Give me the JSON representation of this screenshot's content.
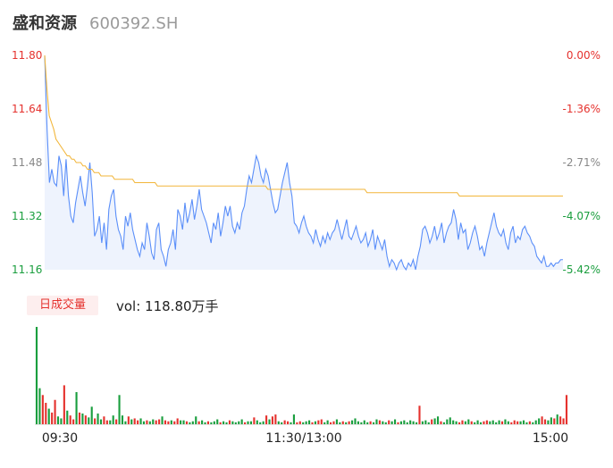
{
  "header": {
    "name": "盛和资源",
    "code": "600392.SH"
  },
  "volume_panel": {
    "tag": "日成交量",
    "vol_prefix": "vol: ",
    "vol_value": "118.80",
    "vol_unit": "万手"
  },
  "colors": {
    "up": "#e5322e",
    "down": "#1a9e3e",
    "neutral": "#888888",
    "price_line": "#5b8ff9",
    "avg_line": "#f2b63a"
  },
  "chart_data": [
    {
      "type": "line",
      "title": "",
      "y_ticks_left": [
        "11.80",
        "11.64",
        "11.48",
        "11.32",
        "11.16"
      ],
      "y_ticks_right": [
        "0.00%",
        "-1.36%",
        "-2.71%",
        "-4.07%",
        "-5.42%"
      ],
      "ylim": [
        11.16,
        11.8
      ],
      "x_ticks": [
        "09:30",
        "11:30/13:00",
        "15:00"
      ],
      "series": [
        {
          "role": "price",
          "values": [
            11.8,
            11.58,
            11.42,
            11.46,
            11.42,
            11.41,
            11.5,
            11.47,
            11.38,
            11.49,
            11.38,
            11.32,
            11.3,
            11.36,
            11.4,
            11.44,
            11.39,
            11.35,
            11.41,
            11.48,
            11.39,
            11.26,
            11.28,
            11.32,
            11.24,
            11.3,
            11.22,
            11.34,
            11.38,
            11.4,
            11.32,
            11.28,
            11.26,
            11.22,
            11.32,
            11.29,
            11.33,
            11.28,
            11.25,
            11.22,
            11.2,
            11.24,
            11.22,
            11.3,
            11.26,
            11.21,
            11.19,
            11.28,
            11.3,
            11.22,
            11.2,
            11.17,
            11.22,
            11.24,
            11.28,
            11.22,
            11.34,
            11.32,
            11.28,
            11.36,
            11.3,
            11.33,
            11.37,
            11.31,
            11.35,
            11.4,
            11.34,
            11.32,
            11.3,
            11.27,
            11.24,
            11.3,
            11.28,
            11.33,
            11.26,
            11.3,
            11.35,
            11.32,
            11.35,
            11.29,
            11.27,
            11.3,
            11.28,
            11.33,
            11.35,
            11.4,
            11.44,
            11.42,
            11.46,
            11.5,
            11.48,
            11.44,
            11.42,
            11.46,
            11.44,
            11.4,
            11.36,
            11.33,
            11.34,
            11.38,
            11.42,
            11.45,
            11.48,
            11.42,
            11.38,
            11.3,
            11.29,
            11.27,
            11.3,
            11.32,
            11.29,
            11.27,
            11.26,
            11.24,
            11.28,
            11.25,
            11.23,
            11.26,
            11.24,
            11.27,
            11.25,
            11.27,
            11.28,
            11.31,
            11.28,
            11.25,
            11.28,
            11.31,
            11.26,
            11.25,
            11.27,
            11.29,
            11.26,
            11.24,
            11.25,
            11.27,
            11.23,
            11.25,
            11.28,
            11.22,
            11.26,
            11.24,
            11.22,
            11.25,
            11.2,
            11.17,
            11.19,
            11.18,
            11.16,
            11.18,
            11.19,
            11.17,
            11.16,
            11.18,
            11.17,
            11.19,
            11.16,
            11.2,
            11.23,
            11.28,
            11.29,
            11.27,
            11.24,
            11.26,
            11.29,
            11.25,
            11.27,
            11.3,
            11.24,
            11.27,
            11.29,
            11.3,
            11.34,
            11.31,
            11.25,
            11.3,
            11.27,
            11.28,
            11.22,
            11.24,
            11.27,
            11.29,
            11.26,
            11.22,
            11.23,
            11.2,
            11.24,
            11.27,
            11.3,
            11.33,
            11.29,
            11.27,
            11.26,
            11.28,
            11.24,
            11.22,
            11.27,
            11.29,
            11.24,
            11.26,
            11.25,
            11.28,
            11.29,
            11.27,
            11.26,
            11.24,
            11.23,
            11.2,
            11.19,
            11.18,
            11.2,
            11.17,
            11.17,
            11.18,
            11.17,
            11.18,
            11.18,
            11.19,
            11.19
          ]
        },
        {
          "role": "average",
          "values": [
            11.8,
            11.7,
            11.62,
            11.6,
            11.58,
            11.55,
            11.54,
            11.53,
            11.52,
            11.51,
            11.5,
            11.5,
            11.49,
            11.49,
            11.48,
            11.48,
            11.48,
            11.47,
            11.47,
            11.46,
            11.46,
            11.46,
            11.45,
            11.45,
            11.45,
            11.44,
            11.44,
            11.44,
            11.44,
            11.44,
            11.44,
            11.43,
            11.43,
            11.43,
            11.43,
            11.43,
            11.43,
            11.43,
            11.43,
            11.43,
            11.42,
            11.42,
            11.42,
            11.42,
            11.42,
            11.42,
            11.42,
            11.42,
            11.42,
            11.42,
            11.41,
            11.41,
            11.41,
            11.41,
            11.41,
            11.41,
            11.41,
            11.41,
            11.41,
            11.41,
            11.41,
            11.41,
            11.41,
            11.41,
            11.41,
            11.41,
            11.41,
            11.41,
            11.41,
            11.41,
            11.41,
            11.41,
            11.41,
            11.41,
            11.41,
            11.41,
            11.41,
            11.41,
            11.41,
            11.41,
            11.41,
            11.41,
            11.41,
            11.41,
            11.41,
            11.41,
            11.41,
            11.41,
            11.41,
            11.41,
            11.41,
            11.41,
            11.41,
            11.41,
            11.41,
            11.41,
            11.41,
            11.41,
            11.41,
            11.4,
            11.4,
            11.4,
            11.4,
            11.4,
            11.4,
            11.4,
            11.4,
            11.4,
            11.4,
            11.4,
            11.4,
            11.4,
            11.4,
            11.4,
            11.4,
            11.4,
            11.4,
            11.4,
            11.4,
            11.4,
            11.4,
            11.4,
            11.4,
            11.4,
            11.4,
            11.4,
            11.4,
            11.4,
            11.4,
            11.4,
            11.4,
            11.4,
            11.4,
            11.4,
            11.4,
            11.4,
            11.4,
            11.4,
            11.4,
            11.4,
            11.4,
            11.4,
            11.4,
            11.39,
            11.39,
            11.39,
            11.39,
            11.39,
            11.39,
            11.39,
            11.39,
            11.39,
            11.39,
            11.39,
            11.39,
            11.39,
            11.39,
            11.39,
            11.39,
            11.39,
            11.39,
            11.39,
            11.39,
            11.39,
            11.39,
            11.39,
            11.39,
            11.39,
            11.39,
            11.39,
            11.39,
            11.39,
            11.39,
            11.39,
            11.39,
            11.39,
            11.39,
            11.39,
            11.39,
            11.39,
            11.39,
            11.39,
            11.39,
            11.39,
            11.38,
            11.38,
            11.38,
            11.38,
            11.38,
            11.38,
            11.38,
            11.38,
            11.38,
            11.38,
            11.38,
            11.38,
            11.38,
            11.38,
            11.38,
            11.38,
            11.38,
            11.38,
            11.38,
            11.38,
            11.38,
            11.38,
            11.38,
            11.38,
            11.38,
            11.38,
            11.38,
            11.38,
            11.38,
            11.38,
            11.38,
            11.38,
            11.38,
            11.38,
            11.38,
            11.38,
            11.38
          ]
        }
      ]
    },
    {
      "type": "bar",
      "title": "",
      "x_ticks": [
        "09:30",
        "11:30/13:00",
        "15:00"
      ],
      "ylim": [
        0,
        100
      ],
      "values": [
        100,
        37,
        30,
        22,
        16,
        12,
        25,
        8,
        6,
        40,
        14,
        9,
        5,
        33,
        12,
        11,
        9,
        7,
        18,
        6,
        11,
        5,
        8,
        4,
        4,
        9,
        5,
        30,
        9,
        3,
        8,
        5,
        6,
        4,
        6,
        3,
        4,
        3,
        5,
        4,
        5,
        8,
        4,
        3,
        4,
        3,
        6,
        4,
        4,
        3,
        2,
        3,
        8,
        3,
        4,
        2,
        3,
        2,
        3,
        5,
        2,
        3,
        2,
        4,
        3,
        2,
        3,
        5,
        2,
        3,
        3,
        7,
        4,
        2,
        3,
        9,
        5,
        8,
        10,
        3,
        2,
        4,
        3,
        2,
        10,
        2,
        3,
        2,
        3,
        4,
        2,
        3,
        4,
        5,
        2,
        4,
        2,
        3,
        5,
        2,
        3,
        2,
        3,
        4,
        6,
        3,
        2,
        4,
        2,
        3,
        2,
        5,
        4,
        3,
        2,
        4,
        3,
        5,
        2,
        3,
        4,
        2,
        4,
        3,
        2,
        19,
        3,
        4,
        2,
        5,
        6,
        8,
        3,
        2,
        5,
        7,
        4,
        3,
        2,
        4,
        3,
        5,
        3,
        2,
        4,
        2,
        3,
        4,
        3,
        4,
        2,
        4,
        3,
        5,
        3,
        2,
        4,
        3,
        3,
        4,
        2,
        3,
        2,
        4,
        6,
        8,
        5,
        4,
        7,
        6,
        10,
        8,
        6,
        30
      ],
      "directions": "dduuduudduduudududdudduudduddduduuddudduuduuduudduddduddudddudduddddudduddduduudduudduuddduduudduuddududdddddudduddudduddddddudddudduddddduudduddduuddddudduuuddduddduudduduuudduuuudud"
    }
  ]
}
